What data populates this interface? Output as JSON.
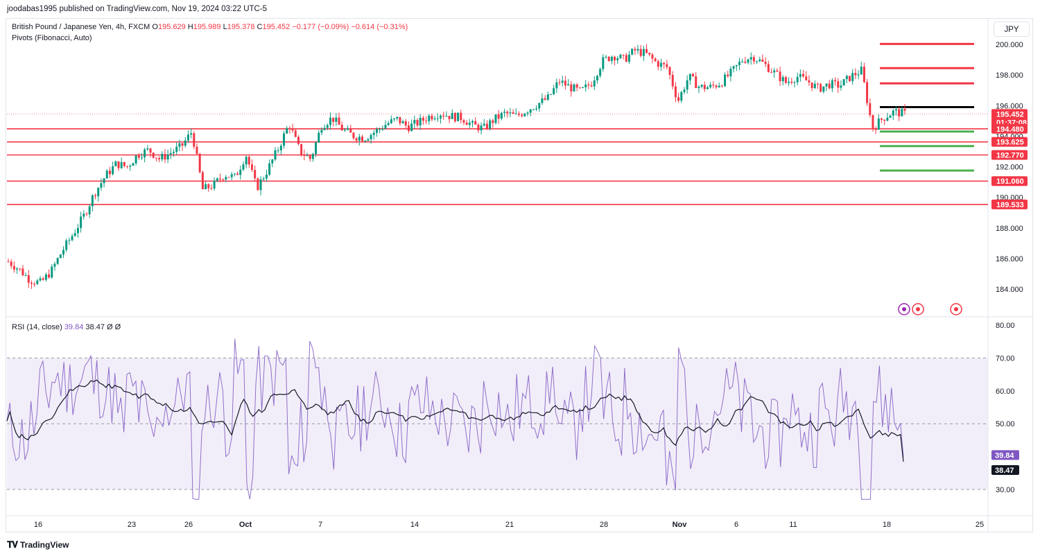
{
  "publisher_line": "joodabas1995 published on TradingView.com, Nov 19, 2024 03:22 UTC-5",
  "legend": {
    "symbol": "British Pound / Japanese Yen, 4h, FXCM",
    "o_label": "O",
    "o": "195.629",
    "h_label": "H",
    "h": "195.989",
    "l_label": "L",
    "l": "195.378",
    "c_label": "C",
    "c": "195.452",
    "change": "−0.177 (−0.09%)",
    "change2": "−0.614 (−0.31%)",
    "pivots": "Pivots (Fibonacci, Auto)"
  },
  "currency_button": "JPY",
  "price_axis_ticks": [
    "200.000",
    "198.000",
    "196.000",
    "194.000",
    "192.000",
    "190.000",
    "188.000",
    "186.000",
    "184.000"
  ],
  "price_labels": [
    {
      "text": "195.452",
      "price": 195.452,
      "color": "#f23645"
    },
    {
      "text": "01:37:08",
      "price": 194.9,
      "color": "#f23645"
    },
    {
      "text": "194.480",
      "price": 194.48,
      "color": "#f23645"
    },
    {
      "text": "193.625",
      "price": 193.625,
      "color": "#f23645"
    },
    {
      "text": "192.770",
      "price": 192.77,
      "color": "#f23645"
    },
    {
      "text": "191.060",
      "price": 191.06,
      "color": "#f23645"
    },
    {
      "text": "189.533",
      "price": 189.533,
      "color": "#f23645"
    }
  ],
  "support_resistance_lines": [
    194.48,
    193.625,
    192.77,
    191.06,
    189.533
  ],
  "pivot_levels": [
    {
      "price": 200.03,
      "color": "#f23645"
    },
    {
      "price": 198.45,
      "color": "#f23645"
    },
    {
      "price": 197.45,
      "color": "#f23645"
    },
    {
      "price": 195.9,
      "color": "#000000"
    },
    {
      "price": 194.3,
      "color": "#4caf50"
    },
    {
      "price": 193.35,
      "color": "#4caf50"
    },
    {
      "price": 191.75,
      "color": "#4caf50"
    }
  ],
  "x_axis_labels": [
    "16",
    "23",
    "26",
    "Oct",
    "7",
    "14",
    "21",
    "28",
    "Nov",
    "6",
    "11",
    "18",
    "25"
  ],
  "rsi": {
    "title": "RSI (14, close)",
    "value": "39.84",
    "ma_value": "38.47",
    "extra1": "Ø",
    "extra2": "Ø",
    "axis_ticks": [
      "80.00",
      "70.00",
      "60.00",
      "50.00",
      "30.00"
    ],
    "value_label": "39.84",
    "ma_label": "38.47"
  },
  "colors": {
    "up": "#089981",
    "down": "#f23645",
    "rsi_line": "#7e57c2",
    "rsi_band": "#ede7f6",
    "level_red": "#f23645"
  },
  "price_path": [
    185.8,
    185.3,
    184.6,
    184.4,
    185.2,
    186.5,
    187.6,
    188.8,
    190.3,
    191.4,
    192.2,
    192.0,
    192.8,
    193.1,
    192.5,
    192.9,
    193.3,
    194.3,
    190.5,
    190.8,
    191.5,
    191.3,
    192.8,
    190.6,
    191.8,
    193.2,
    194.8,
    193.0,
    192.5,
    194.7,
    195.2,
    194.4,
    194.0,
    193.9,
    194.3,
    194.8,
    195.1,
    194.6,
    194.9,
    195.3,
    195.5,
    195.3,
    195.2,
    194.7,
    194.5,
    195.1,
    195.5,
    195.3,
    195.7,
    196.1,
    196.5,
    197.6,
    197.2,
    196.9,
    197.5,
    198.9,
    199.3,
    199.0,
    199.6,
    199.4,
    198.8,
    198.5,
    196.3,
    197.9,
    197.2,
    197.2,
    197.5,
    198.2,
    199.0,
    199.2,
    198.7,
    198.1,
    197.5,
    197.9,
    197.6,
    197.1,
    197.4,
    197.3,
    197.9,
    198.3,
    194.5,
    195.2,
    195.6,
    195.45
  ]
}
